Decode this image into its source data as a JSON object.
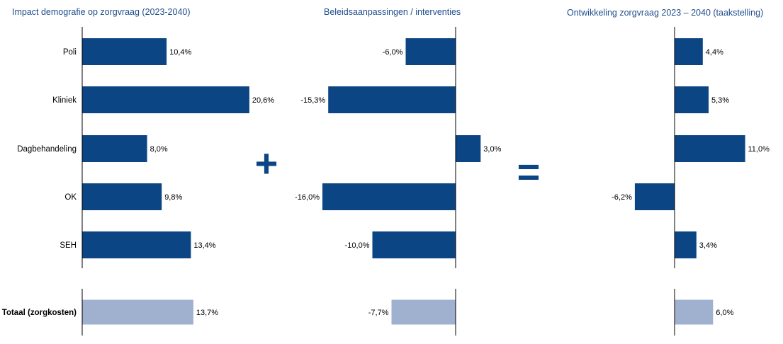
{
  "colors": {
    "bar": "#0b4583",
    "total_bar": "#9fb1cf",
    "title": "#1f4e8c",
    "operator": "#0b4583"
  },
  "operators": {
    "plus": "+",
    "equals": "="
  },
  "chart_data": [
    {
      "type": "bar",
      "orientation": "horizontal",
      "title": "Impact demografie op zorgvraag (2023-2040)",
      "categories": [
        "Poli",
        "Kliniek",
        "Dagbehandeling",
        "OK",
        "SEH"
      ],
      "values": [
        10.4,
        20.6,
        8.0,
        9.8,
        13.4
      ],
      "value_labels": [
        "10,4%",
        "20,6%",
        "8,0%",
        "9,8%",
        "13,4%"
      ],
      "total": {
        "label": "Totaal (zorgkosten)",
        "value": 13.7,
        "value_label": "13,7%"
      }
    },
    {
      "type": "bar",
      "orientation": "horizontal",
      "title": "Beleidsaanpassingen / interventies",
      "categories": [
        "Poli",
        "Kliniek",
        "Dagbehandeling",
        "OK",
        "SEH"
      ],
      "values": [
        -6.0,
        -15.3,
        3.0,
        -16.0,
        -10.0
      ],
      "value_labels": [
        "-6,0%",
        "-15,3%",
        "3,0%",
        "-16,0%",
        "-10,0%"
      ],
      "total": {
        "value": -7.7,
        "value_label": "-7,7%"
      }
    },
    {
      "type": "bar",
      "orientation": "horizontal",
      "title": "Ontwikkeling zorgvraag 2023 – 2040 (taakstelling)",
      "categories": [
        "Poli",
        "Kliniek",
        "Dagbehandeling",
        "OK",
        "SEH"
      ],
      "values": [
        4.4,
        5.3,
        11.0,
        -6.2,
        3.4
      ],
      "value_labels": [
        "4,4%",
        "5,3%",
        "11,0%",
        "-6,2%",
        "3,4%"
      ],
      "total": {
        "value": 6.0,
        "value_label": "6,0%"
      }
    }
  ]
}
